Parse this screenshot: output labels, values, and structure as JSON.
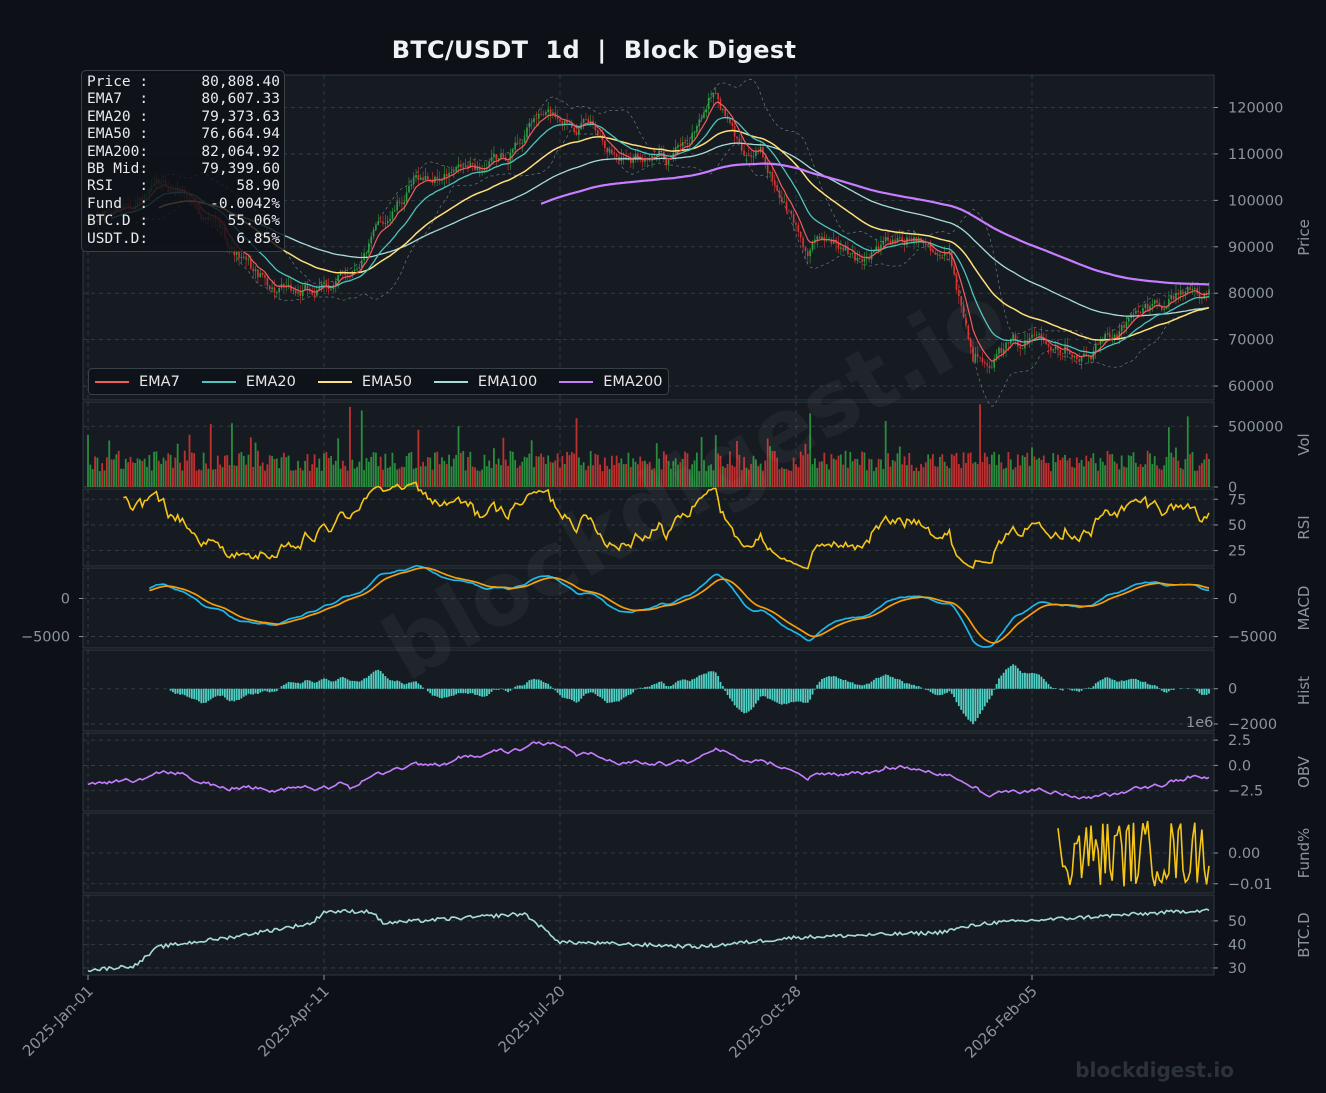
{
  "title": "BTC/USDT  1d  |  Block Digest",
  "watermark": "blockdigest.io",
  "footer": "blockdigest.io",
  "info_box": {
    "rows": [
      {
        "label": "Price :",
        "value": "80,808.40"
      },
      {
        "label": "EMA7  :",
        "value": "80,607.33"
      },
      {
        "label": "EMA20 :",
        "value": "79,373.63"
      },
      {
        "label": "EMA50 :",
        "value": "76,664.94"
      },
      {
        "label": "EMA200:",
        "value": "82,064.92"
      },
      {
        "label": "BB Mid:",
        "value": "79,399.60"
      },
      {
        "label": "RSI   :",
        "value": "58.90"
      },
      {
        "label": "Fund  :",
        "value": "-0.0042%"
      },
      {
        "label": "BTC.D :",
        "value": "55.06%"
      },
      {
        "label": "USDT.D:",
        "value": "6.85%"
      }
    ]
  },
  "legend": [
    {
      "label": "EMA7",
      "color": "#f25c5c"
    },
    {
      "label": "EMA20",
      "color": "#4ec4bc"
    },
    {
      "label": "EMA50",
      "color": "#ffe07a"
    },
    {
      "label": "EMA100",
      "color": "#a8dcd6"
    },
    {
      "label": "EMA200",
      "color": "#c77dff"
    }
  ],
  "colors": {
    "background": "#0d1117",
    "panel": "#161b22",
    "grid": "#39414b",
    "text": "#8b949e",
    "up": "#2ea043",
    "down": "#da3633",
    "rsi": "#f5c518",
    "macd": "#1fb5e8",
    "signal": "#f59e0b",
    "hist": "#4fd1c5",
    "obv": "#c77dff",
    "funding": "#f5c518",
    "btcd": "#a8dcd6"
  },
  "chart_data": {
    "type": "line",
    "x_ticks": [
      "2025-Jan-01",
      "2025-Apr-11",
      "2025-Jul-20",
      "2025-Oct-28",
      "2026-Feb-05"
    ],
    "panels": [
      {
        "ylabel": "Price",
        "ylim": [
          57000,
          127000
        ],
        "ticks": [
          60000,
          70000,
          80000,
          90000,
          100000,
          110000,
          120000
        ],
        "close_anchors": [
          [
            0,
            94000
          ],
          [
            20,
            101000
          ],
          [
            40,
            102000
          ],
          [
            55,
            94000
          ],
          [
            70,
            84000
          ],
          [
            85,
            79000
          ],
          [
            98,
            80000
          ],
          [
            110,
            84000
          ],
          [
            125,
            95000
          ],
          [
            140,
            104000
          ],
          [
            160,
            106000
          ],
          [
            175,
            108000
          ],
          [
            190,
            118000
          ],
          [
            205,
            118000
          ],
          [
            215,
            116000
          ],
          [
            225,
            110000
          ],
          [
            235,
            111000
          ],
          [
            245,
            109000
          ],
          [
            255,
            113000
          ],
          [
            265,
            124000
          ],
          [
            275,
            112000
          ],
          [
            285,
            110000
          ],
          [
            295,
            100000
          ],
          [
            305,
            89000
          ],
          [
            315,
            92000
          ],
          [
            325,
            87000
          ],
          [
            335,
            90000
          ],
          [
            345,
            91000
          ],
          [
            355,
            93000
          ],
          [
            365,
            88000
          ],
          [
            370,
            78000
          ],
          [
            375,
            67000
          ],
          [
            385,
            68000
          ],
          [
            395,
            69000
          ],
          [
            405,
            72000
          ],
          [
            415,
            70000
          ],
          [
            425,
            67000
          ],
          [
            435,
            72000
          ],
          [
            445,
            75000
          ],
          [
            455,
            78000
          ],
          [
            465,
            81000
          ],
          [
            475,
            80800
          ]
        ],
        "ema200_start_index": 192
      },
      {
        "ylabel": "Vol",
        "ylim": [
          0,
          700000
        ],
        "ticks": [
          0,
          500000
        ]
      },
      {
        "ylabel": "RSI",
        "ylim": [
          10,
          85
        ],
        "ticks": [
          25,
          50,
          75
        ]
      },
      {
        "ylabel": "MACD",
        "ylim": [
          -6500,
          4000
        ],
        "ticks": [
          -5000,
          0
        ]
      },
      {
        "ylabel": "Hist",
        "ylim": [
          -2400,
          2200
        ],
        "ticks": [
          -2000,
          0
        ],
        "multiplier_label": "1e6"
      },
      {
        "ylabel": "OBV",
        "ylim": [
          -4.5,
          3.2
        ],
        "ticks": [
          -2.5,
          0.0,
          2.5
        ]
      },
      {
        "ylabel": "Fund%",
        "ylim": [
          -0.013,
          0.013
        ],
        "ticks": [
          -0.01,
          0.0
        ],
        "start_index": 411
      },
      {
        "ylabel": "BTC.D",
        "ylim": [
          27,
          61
        ],
        "ticks": [
          30,
          40,
          50
        ]
      }
    ]
  }
}
